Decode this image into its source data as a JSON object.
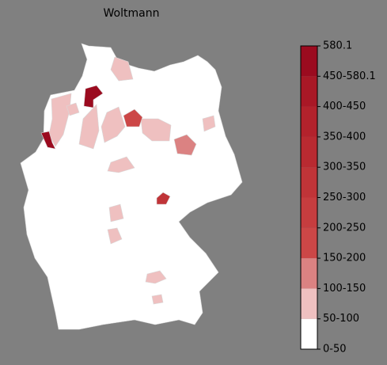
{
  "title": "Woltmann",
  "legend": {
    "labels": [
      "0-50",
      "50-100",
      "100-150",
      "150-200",
      "200-250",
      "250-300",
      "300-350",
      "350-400",
      "400-450",
      "450-580.1",
      "580.1"
    ],
    "colors": [
      "#ffffff",
      "#efc0c0",
      "#db8282",
      "#cc4747",
      "#c63d3f",
      "#c03438",
      "#b92a31",
      "#b3222c",
      "#a91826",
      "#9b0b1f"
    ]
  }
}
